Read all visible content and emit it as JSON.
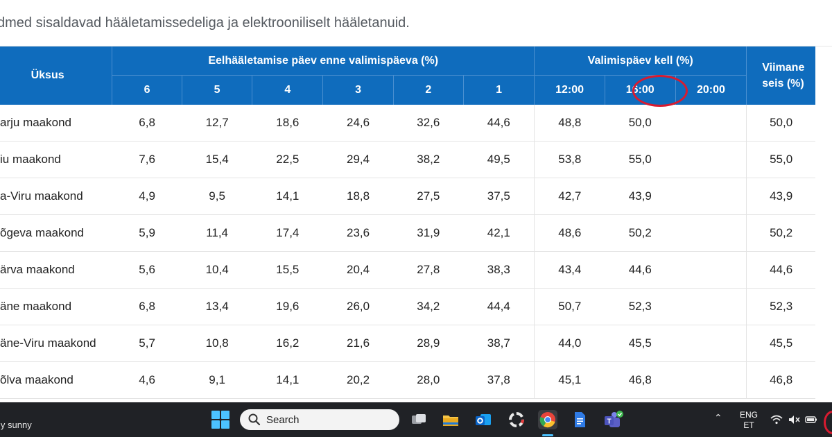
{
  "caption": "dmed sisaldavad hääletamissedeliga ja elektrooniliselt hääletanuid.",
  "table": {
    "unit_header": "Üksus",
    "group_early": "Eelhääletamise päev enne valimispäeva (%)",
    "group_election_day": "Valimispäev kell (%)",
    "last_header_line1": "Viimane",
    "last_header_line2": "seis (%)",
    "early_days": [
      "6",
      "5",
      "4",
      "3",
      "2",
      "1"
    ],
    "election_times": [
      "12:00",
      "16:00",
      "20:00"
    ],
    "rows": [
      {
        "name": "arju maakond",
        "v": [
          "6,8",
          "12,7",
          "18,6",
          "24,6",
          "32,6",
          "44,6",
          "48,8",
          "50,0",
          "",
          "50,0"
        ]
      },
      {
        "name": "iu maakond",
        "v": [
          "7,6",
          "15,4",
          "22,5",
          "29,4",
          "38,2",
          "49,5",
          "53,8",
          "55,0",
          "",
          "55,0"
        ]
      },
      {
        "name": "a-Viru maakond",
        "v": [
          "4,9",
          "9,5",
          "14,1",
          "18,8",
          "27,5",
          "37,5",
          "42,7",
          "43,9",
          "",
          "43,9"
        ]
      },
      {
        "name": "õgeva maakond",
        "v": [
          "5,9",
          "11,4",
          "17,4",
          "23,6",
          "31,9",
          "42,1",
          "48,6",
          "50,2",
          "",
          "50,2"
        ]
      },
      {
        "name": "ärva maakond",
        "v": [
          "5,6",
          "10,4",
          "15,5",
          "20,4",
          "27,8",
          "38,3",
          "43,4",
          "44,6",
          "",
          "44,6"
        ]
      },
      {
        "name": "äne maakond",
        "v": [
          "6,8",
          "13,4",
          "19,6",
          "26,0",
          "34,2",
          "44,4",
          "50,7",
          "52,3",
          "",
          "52,3"
        ]
      },
      {
        "name": "äne-Viru maakond",
        "v": [
          "5,7",
          "10,8",
          "16,2",
          "21,6",
          "28,9",
          "38,7",
          "44,0",
          "45,5",
          "",
          "45,5"
        ]
      },
      {
        "name": "õlva maakond",
        "v": [
          "4,6",
          "9,1",
          "14,1",
          "20,2",
          "28,0",
          "37,8",
          "45,1",
          "46,8",
          "",
          "46,8"
        ]
      }
    ]
  },
  "taskbar": {
    "weather_text": "ly sunny",
    "search_placeholder": "Search",
    "lang_line1": "ENG",
    "lang_line2": "ET",
    "icons": [
      "windows-start-icon",
      "search-icon",
      "task-view-icon",
      "file-explorer-icon",
      "outlook-icon",
      "app-icon",
      "chrome-icon",
      "docs-icon",
      "teams-icon"
    ]
  },
  "colors": {
    "header_blue": "#0f6cbd",
    "annotation_red": "#d81b30",
    "taskbar_bg": "#202226"
  }
}
